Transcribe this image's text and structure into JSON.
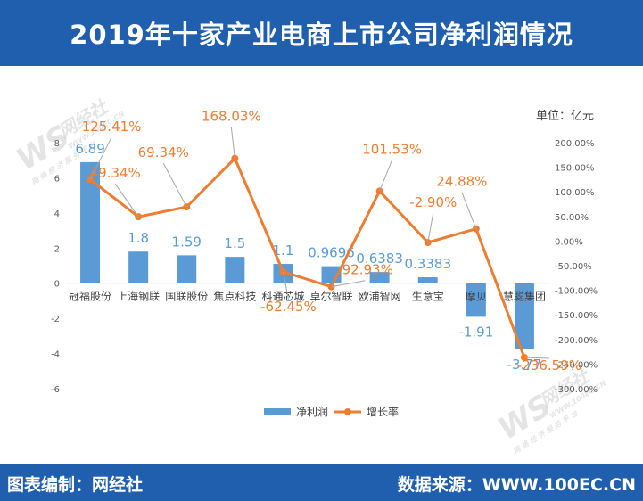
{
  "header": {
    "title": "2019年十家产业电商上市公司净利润情况"
  },
  "footer": {
    "left": "图表编制：网经社",
    "right": "数据来源：WWW.100EC.CN"
  },
  "watermark": {
    "brand": "网经社",
    "site": "WWW.100EC.CN",
    "tagline": "网 络 经 济 服 务 平 台"
  },
  "colors": {
    "bar": "#5b9bd5",
    "line": "#ed7d31",
    "header": "#1f5fae",
    "bar_label": "#5b9bd5",
    "line_label": "#ed7d31"
  },
  "chart_data": {
    "type": "bar",
    "unit_label": "单位：亿元",
    "categories": [
      "冠福股份",
      "上海钢联",
      "国联股份",
      "焦点科技",
      "科通芯城",
      "卓尔智联",
      "欧浦智网",
      "生意宝",
      "摩贝",
      "慧聪集团"
    ],
    "series": [
      {
        "name": "净利润",
        "type": "bar",
        "axis": "left",
        "values": [
          6.89,
          1.8,
          1.59,
          1.5,
          1.1,
          0.9696,
          0.6383,
          0.3383,
          -1.91,
          -3.77
        ],
        "labels": [
          "6.89",
          "1.8",
          "1.59",
          "1.5",
          "1.1",
          "0.9696",
          "0.6383",
          "0.3383",
          "-1.91",
          "-3.77"
        ]
      },
      {
        "name": "增长率",
        "type": "line",
        "axis": "right",
        "values": [
          125.41,
          49.34,
          69.34,
          168.03,
          -62.45,
          -92.93,
          101.53,
          -2.9,
          24.88,
          -236.59
        ],
        "labels": [
          "125.41%",
          "49.34%",
          "69.34%",
          "168.03%",
          "-62.45%",
          "-92.93%",
          "101.53%",
          "-2.90%",
          "24.88%",
          "-236.59%"
        ]
      }
    ],
    "left_axis": {
      "min": -6,
      "max": 8,
      "ticks": [
        -6,
        -4,
        -2,
        0,
        2,
        4,
        6,
        8
      ]
    },
    "right_axis": {
      "min": -300,
      "max": 200,
      "ticks": [
        200,
        150,
        100,
        50,
        0,
        -50,
        -100,
        -150,
        -200,
        -250,
        -300
      ],
      "tick_labels": [
        "200.00%",
        "150.00%",
        "100.00%",
        "50.00%",
        "0.00%",
        "-50.00%",
        "-100.00%",
        "-150.00%",
        "-200.00%",
        "-250.00%",
        "-300.00%"
      ]
    },
    "legend": {
      "position": "bottom",
      "items": [
        "净利润",
        "增长率"
      ]
    },
    "grid": false
  }
}
